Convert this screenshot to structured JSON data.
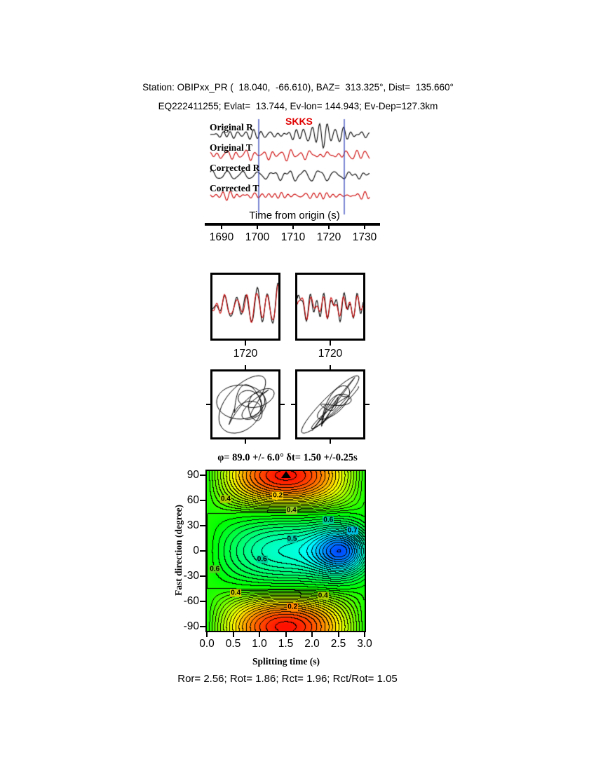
{
  "header": {
    "line1": "Station: OBIPxx_PR (  18.040,  -66.610), BAZ=  313.325°, Dist=  135.660°",
    "line2": "EQ222411255; Evlat=  13.744, Ev-lon= 144.943; Ev-Dep=127.3km"
  },
  "station": {
    "name": "OBIPxx_PR",
    "lat": 18.04,
    "lon": -66.61,
    "baz_deg": 313.325,
    "dist_deg": 135.66
  },
  "event": {
    "id": "EQ222411255",
    "lat": 13.744,
    "lon": 144.943,
    "depth_km": 127.3
  },
  "waveform_panel": {
    "traces": [
      {
        "label": "Original R",
        "color": "#000000"
      },
      {
        "label": "Original T",
        "color": "#cc0000"
      },
      {
        "label": "Corrected R",
        "color": "#000000"
      },
      {
        "label": "Corrected T",
        "color": "#cc0000"
      }
    ],
    "phase_label": "SKKS",
    "phase_color": "#e00000",
    "window_color": "#3344bb",
    "axis_label": "Time from origin (s)",
    "tick_labels": [
      "1690",
      "1700",
      "1710",
      "1720",
      "1730"
    ]
  },
  "zoom_panels": {
    "left_tick": "1720",
    "right_tick": "1720"
  },
  "contour": {
    "title": "φ= 89.0 +/- 6.0° δt= 1.50 +/-0.25s",
    "xlabel": "Splitting time (s)",
    "ylabel": "Fast direction (degree)",
    "ytick_labels": [
      "90",
      "60",
      "30",
      "0",
      "-30",
      "-60",
      "-90"
    ],
    "ytick_values": [
      90,
      60,
      30,
      0,
      -30,
      -60,
      -90
    ],
    "xtick_labels": [
      "0.0",
      "0.5",
      "1.0",
      "1.5",
      "2.0",
      "2.5",
      "3.0"
    ],
    "xtick_values": [
      0,
      0.5,
      1,
      1.5,
      2,
      2.5,
      3
    ],
    "marker": {
      "t": 1.5,
      "phi": 90
    },
    "annotations": [
      {
        "text": "0.4",
        "t": 0.36,
        "phi": 62,
        "bg": "#aacc00"
      },
      {
        "text": "0.2",
        "t": 1.35,
        "phi": 66,
        "bg": "#ffcc00"
      },
      {
        "text": "0.4",
        "t": 1.61,
        "phi": 48,
        "bg": "#99cc22"
      },
      {
        "text": "0.6",
        "t": 2.31,
        "phi": 37,
        "bg": "#00cc99"
      },
      {
        "text": "0.7",
        "t": 2.77,
        "phi": 24,
        "bg": "#00bbdd"
      },
      {
        "text": "0.5",
        "t": 1.62,
        "phi": 14,
        "bg": "#00ccaa"
      },
      {
        "text": "0.6",
        "t": 0.15,
        "phi": -22,
        "bg": "#55cc22"
      },
      {
        "text": "0.6",
        "t": 1.05,
        "phi": -10,
        "bg": "#00cc99"
      },
      {
        "text": "0.4",
        "t": 0.55,
        "phi": -50,
        "bg": "#cccc00"
      },
      {
        "text": "0.2",
        "t": 1.63,
        "phi": -67,
        "bg": "#ff8800"
      },
      {
        "text": "0.4",
        "t": 2.21,
        "phi": -53,
        "bg": "#aacc00"
      }
    ]
  },
  "footer": {
    "text": "Ror= 2.56; Rot= 1.86; Rct= 1.96; Rct/Rot= 1.05"
  },
  "results": {
    "Ror": 2.56,
    "Rot": 1.86,
    "Rct": 1.96,
    "Rct_over_Rot": 1.05
  },
  "chart_data": [
    {
      "type": "line",
      "title": "Radial/Transverse waveforms before and after splitting correction",
      "series": [
        {
          "name": "Original R"
        },
        {
          "name": "Original T"
        },
        {
          "name": "Corrected R"
        },
        {
          "name": "Corrected T"
        }
      ],
      "xlabel": "Time from origin (s)",
      "xlim": [
        1687,
        1731
      ],
      "xticks": [
        1690,
        1700,
        1710,
        1720,
        1730
      ],
      "phase_arrival_label": "SKKS",
      "analysis_window_s": [
        1700.5,
        1724.5
      ]
    },
    {
      "type": "line",
      "title": "Windowed waveform overlay panels (black vs red)",
      "panel_xticks": [
        1720,
        1720
      ]
    },
    {
      "type": "scatter",
      "title": "Particle motion before (left, elliptical) and after (right, linearized diagonal) correction"
    },
    {
      "type": "heatmap",
      "title": "φ= 89.0 +/- 6.0° δt= 1.50 +/-0.25s",
      "xlabel": "Splitting time (s)",
      "ylabel": "Fast direction (degree)",
      "xlim": [
        0,
        3
      ],
      "ylim": [
        -95,
        95
      ],
      "xticks": [
        0,
        0.5,
        1.0,
        1.5,
        2.0,
        2.5,
        3.0
      ],
      "yticks": [
        90,
        60,
        30,
        0,
        -30,
        -60,
        -90
      ],
      "best_solution": {
        "fast_direction_deg": 89.0,
        "fast_direction_err_deg": 6.0,
        "delay_time_s": 1.5,
        "delay_time_err_s": 0.25
      },
      "annotated_contour_levels": [
        0.2,
        0.4,
        0.5,
        0.6,
        0.7
      ],
      "low_region": {
        "t_s": 2.6,
        "phi_deg": 0,
        "color": "blue"
      },
      "high_regions": [
        {
          "t_s": 1.45,
          "phi_deg": 90,
          "color": "red"
        },
        {
          "t_s": 1.4,
          "phi_deg": -90,
          "color": "red"
        }
      ]
    }
  ]
}
